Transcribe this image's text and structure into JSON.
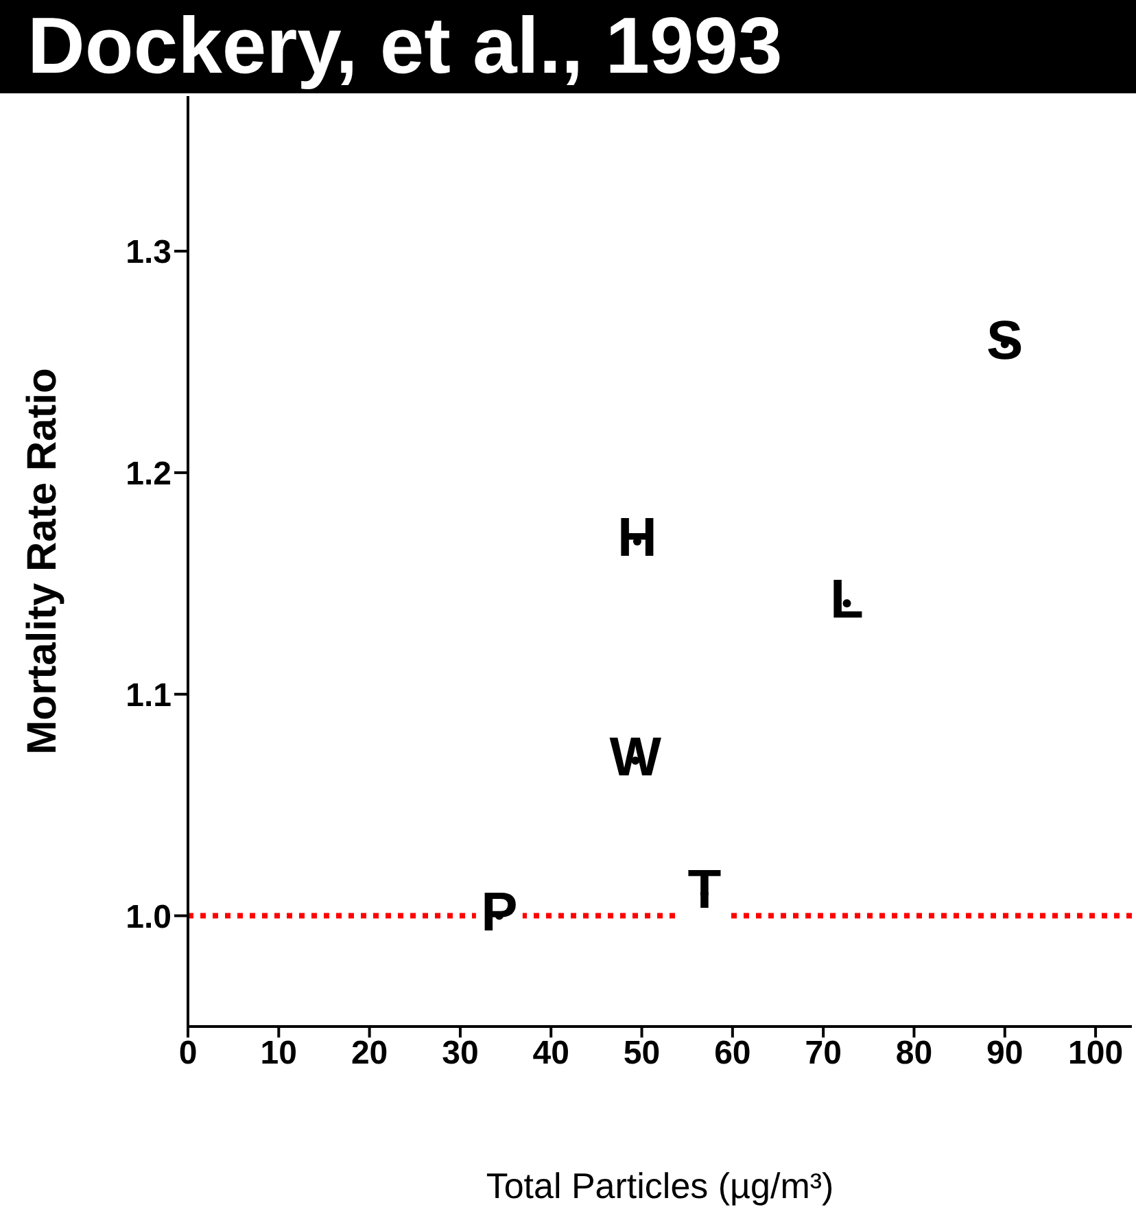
{
  "chart_data": {
    "type": "scatter",
    "title": "Dockery, et al., 1993",
    "xlabel": "Total Particles (µg/m³)",
    "ylabel": "Mortality Rate Ratio",
    "x": [
      34.3,
      49.5,
      49.3,
      56.9,
      72.6,
      90
    ],
    "values": [
      1.0,
      1.169,
      1.07,
      1.01,
      1.141,
      1.258
    ],
    "value_labels": [
      "P",
      "H",
      "W",
      "T",
      "L",
      "S"
    ],
    "color": "#000000",
    "xlim": [
      0,
      104
    ],
    "xticks": [
      0,
      10,
      20,
      30,
      40,
      50,
      60,
      70,
      80,
      90,
      100
    ],
    "ylim": [
      0.95,
      1.37
    ],
    "yticks": [
      {
        "value": 1,
        "label": "1.0"
      },
      1.1,
      1.2,
      1.3
    ],
    "ref_lines": [
      {
        "axis": "y",
        "value": 1,
        "color": "#ff0000",
        "line_style": "dotted"
      }
    ],
    "grid": false,
    "legend": false
  }
}
